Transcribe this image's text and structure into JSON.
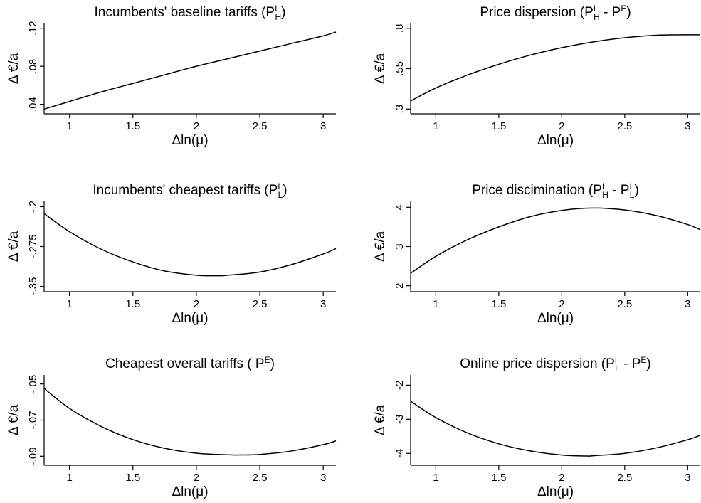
{
  "chart_data": [
    {
      "type": "line",
      "title_main": "Incumbents' baseline tariffs (P",
      "title_sup": "I",
      "title_sub": "H",
      "title_end": ")",
      "xlabel": "Δln(μ)",
      "ylabel": "Δ €/a",
      "xlim": [
        0.8,
        3.1
      ],
      "ylim": [
        0.03,
        0.125
      ],
      "xticks": [
        1,
        1.5,
        2,
        2.5,
        3
      ],
      "xtick_labels": [
        "1",
        "1.5",
        "2",
        "2.5",
        "3"
      ],
      "yticks": [
        0.04,
        0.08,
        0.12
      ],
      "ytick_labels": [
        ".04",
        ".08",
        ".12"
      ],
      "series": [
        {
          "x": [
            0.8,
            1.0,
            1.25,
            1.5,
            1.75,
            2.0,
            2.25,
            2.5,
            2.75,
            3.0,
            3.1
          ],
          "y": [
            0.035,
            0.043,
            0.053,
            0.062,
            0.071,
            0.08,
            0.088,
            0.096,
            0.104,
            0.112,
            0.116
          ]
        }
      ]
    },
    {
      "type": "line",
      "title_main": "Price dispersion (P",
      "title_sup": "I",
      "title_sub": "H",
      "title_end": " - P",
      "title_sup2": "E",
      "title_end2": ")",
      "xlabel": "Δln(μ)",
      "ylabel": "Δ €/a",
      "xlim": [
        0.8,
        3.1
      ],
      "ylim": [
        0.27,
        0.83
      ],
      "xticks": [
        1,
        1.5,
        2,
        2.5,
        3
      ],
      "xtick_labels": [
        "1",
        "1.5",
        "2",
        "2.5",
        "3"
      ],
      "yticks": [
        0.3,
        0.55,
        0.8
      ],
      "ytick_labels": [
        ".3",
        ".55",
        ".8"
      ],
      "series": [
        {
          "x": [
            0.8,
            1.0,
            1.25,
            1.5,
            1.75,
            2.0,
            2.25,
            2.5,
            2.75,
            3.0,
            3.1
          ],
          "y": [
            0.35,
            0.43,
            0.51,
            0.577,
            0.634,
            0.68,
            0.716,
            0.742,
            0.757,
            0.76,
            0.76
          ]
        }
      ]
    },
    {
      "type": "line",
      "title_main": "Incumbents' cheapest tariffs (P",
      "title_sup": "I",
      "title_sub": "L",
      "title_end": ")",
      "xlabel": "Δln(μ)",
      "ylabel": "Δ €/a",
      "xlim": [
        0.8,
        3.1
      ],
      "ylim": [
        -0.36,
        -0.19
      ],
      "xticks": [
        1,
        1.5,
        2,
        2.5,
        3
      ],
      "xtick_labels": [
        "1",
        "1.5",
        "2",
        "2.5",
        "3"
      ],
      "yticks": [
        -0.35,
        -0.275,
        -0.2
      ],
      "ytick_labels": [
        "-.35",
        "-.275",
        "-.2"
      ],
      "series": [
        {
          "x": [
            0.8,
            1.0,
            1.25,
            1.5,
            1.75,
            2.0,
            2.15,
            2.25,
            2.5,
            2.75,
            3.0,
            3.1
          ],
          "y": [
            -0.213,
            -0.247,
            -0.28,
            -0.304,
            -0.321,
            -0.329,
            -0.33,
            -0.329,
            -0.323,
            -0.309,
            -0.289,
            -0.279
          ]
        }
      ]
    },
    {
      "type": "line",
      "title_main": "Price discimination (P",
      "title_sup": "I",
      "title_sub": "H",
      "title_end": " - P",
      "title_sup2": "I",
      "title_sub2": "L",
      "title_end2": ")",
      "xlabel": "Δln(μ)",
      "ylabel": "Δ €/a",
      "xlim": [
        0.8,
        3.1
      ],
      "ylim": [
        1.85,
        4.15
      ],
      "xticks": [
        1,
        1.5,
        2,
        2.5,
        3
      ],
      "xtick_labels": [
        "1",
        "1.5",
        "2",
        "2.5",
        "3"
      ],
      "yticks": [
        2,
        3,
        4
      ],
      "ytick_labels": [
        "2",
        "3",
        "4"
      ],
      "series": [
        {
          "x": [
            0.8,
            1.0,
            1.25,
            1.5,
            1.75,
            2.0,
            2.25,
            2.5,
            2.75,
            3.0,
            3.1
          ],
          "y": [
            2.32,
            2.75,
            3.17,
            3.5,
            3.76,
            3.92,
            3.98,
            3.93,
            3.79,
            3.56,
            3.43
          ]
        }
      ]
    },
    {
      "type": "line",
      "title_main": "Cheapest overall tariffs ( P",
      "title_sup": "E",
      "title_end": ")",
      "xlabel": "Δln(μ)",
      "ylabel": "Δ €/a",
      "xlim": [
        0.8,
        3.1
      ],
      "ylim": [
        -0.095,
        -0.045
      ],
      "xticks": [
        1,
        1.5,
        2,
        2.5,
        3
      ],
      "xtick_labels": [
        "1",
        "1.5",
        "2",
        "2.5",
        "3"
      ],
      "yticks": [
        -0.09,
        -0.07,
        -0.05
      ],
      "ytick_labels": [
        "-.09",
        "-.07",
        "-.05"
      ],
      "series": [
        {
          "x": [
            0.8,
            1.0,
            1.25,
            1.5,
            1.75,
            2.0,
            2.25,
            2.35,
            2.5,
            2.75,
            3.0,
            3.1
          ],
          "y": [
            -0.0525,
            -0.0635,
            -0.0735,
            -0.0808,
            -0.0856,
            -0.0883,
            -0.0892,
            -0.0893,
            -0.089,
            -0.0871,
            -0.0836,
            -0.0815
          ]
        }
      ]
    },
    {
      "type": "line",
      "title_main": "Online price dispersion (P",
      "title_sup": "I",
      "title_sub": "L",
      "title_end": " - P",
      "title_sup2": "E",
      "title_end2": ")",
      "xlabel": "Δln(μ)",
      "ylabel": "Δ €/a",
      "xlim": [
        0.8,
        3.1
      ],
      "ylim": [
        -4.35,
        -1.7
      ],
      "xticks": [
        1,
        1.5,
        2,
        2.5,
        3
      ],
      "xtick_labels": [
        "1",
        "1.5",
        "2",
        "2.5",
        "3"
      ],
      "yticks": [
        -4,
        -3,
        -2
      ],
      "ytick_labels": [
        "-4",
        "-3",
        "-2"
      ],
      "series": [
        {
          "x": [
            0.8,
            1.0,
            1.25,
            1.5,
            1.75,
            2.0,
            2.2,
            2.25,
            2.5,
            2.75,
            3.0,
            3.1
          ],
          "y": [
            -2.47,
            -2.95,
            -3.4,
            -3.72,
            -3.93,
            -4.05,
            -4.08,
            -4.07,
            -4.0,
            -3.84,
            -3.6,
            -3.47
          ]
        }
      ]
    }
  ]
}
